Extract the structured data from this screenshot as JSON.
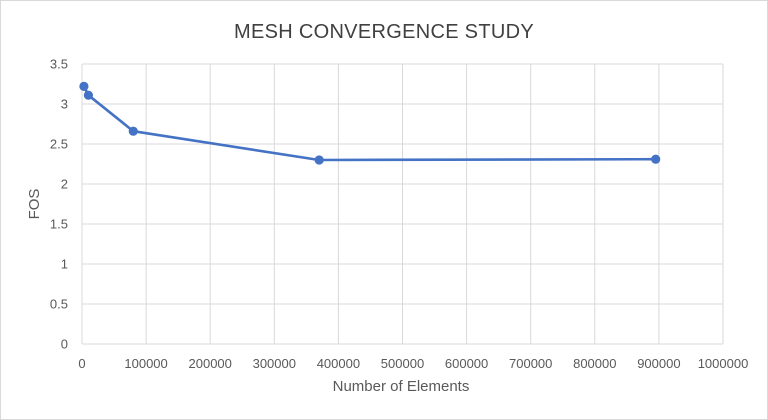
{
  "chart_data": {
    "type": "scatter",
    "title": "MESH CONVERGENCE STUDY",
    "xlabel": "Number of Elements",
    "ylabel": "FOS",
    "xlim": [
      0,
      1000000
    ],
    "ylim": [
      0,
      3.5
    ],
    "x_ticks": [
      "0",
      "100000",
      "200000",
      "300000",
      "400000",
      "500000",
      "600000",
      "700000",
      "800000",
      "900000",
      "1000000"
    ],
    "y_ticks": [
      "0",
      "0.5",
      "1",
      "1.5",
      "2",
      "2.5",
      "3",
      "3.5"
    ],
    "grid": true,
    "legend": "none",
    "series": [
      {
        "name": "FOS",
        "color": "#4472c4",
        "x": [
          3000,
          10000,
          80000,
          370000,
          895000
        ],
        "y": [
          3.22,
          3.11,
          2.66,
          2.3,
          2.31
        ]
      }
    ]
  }
}
